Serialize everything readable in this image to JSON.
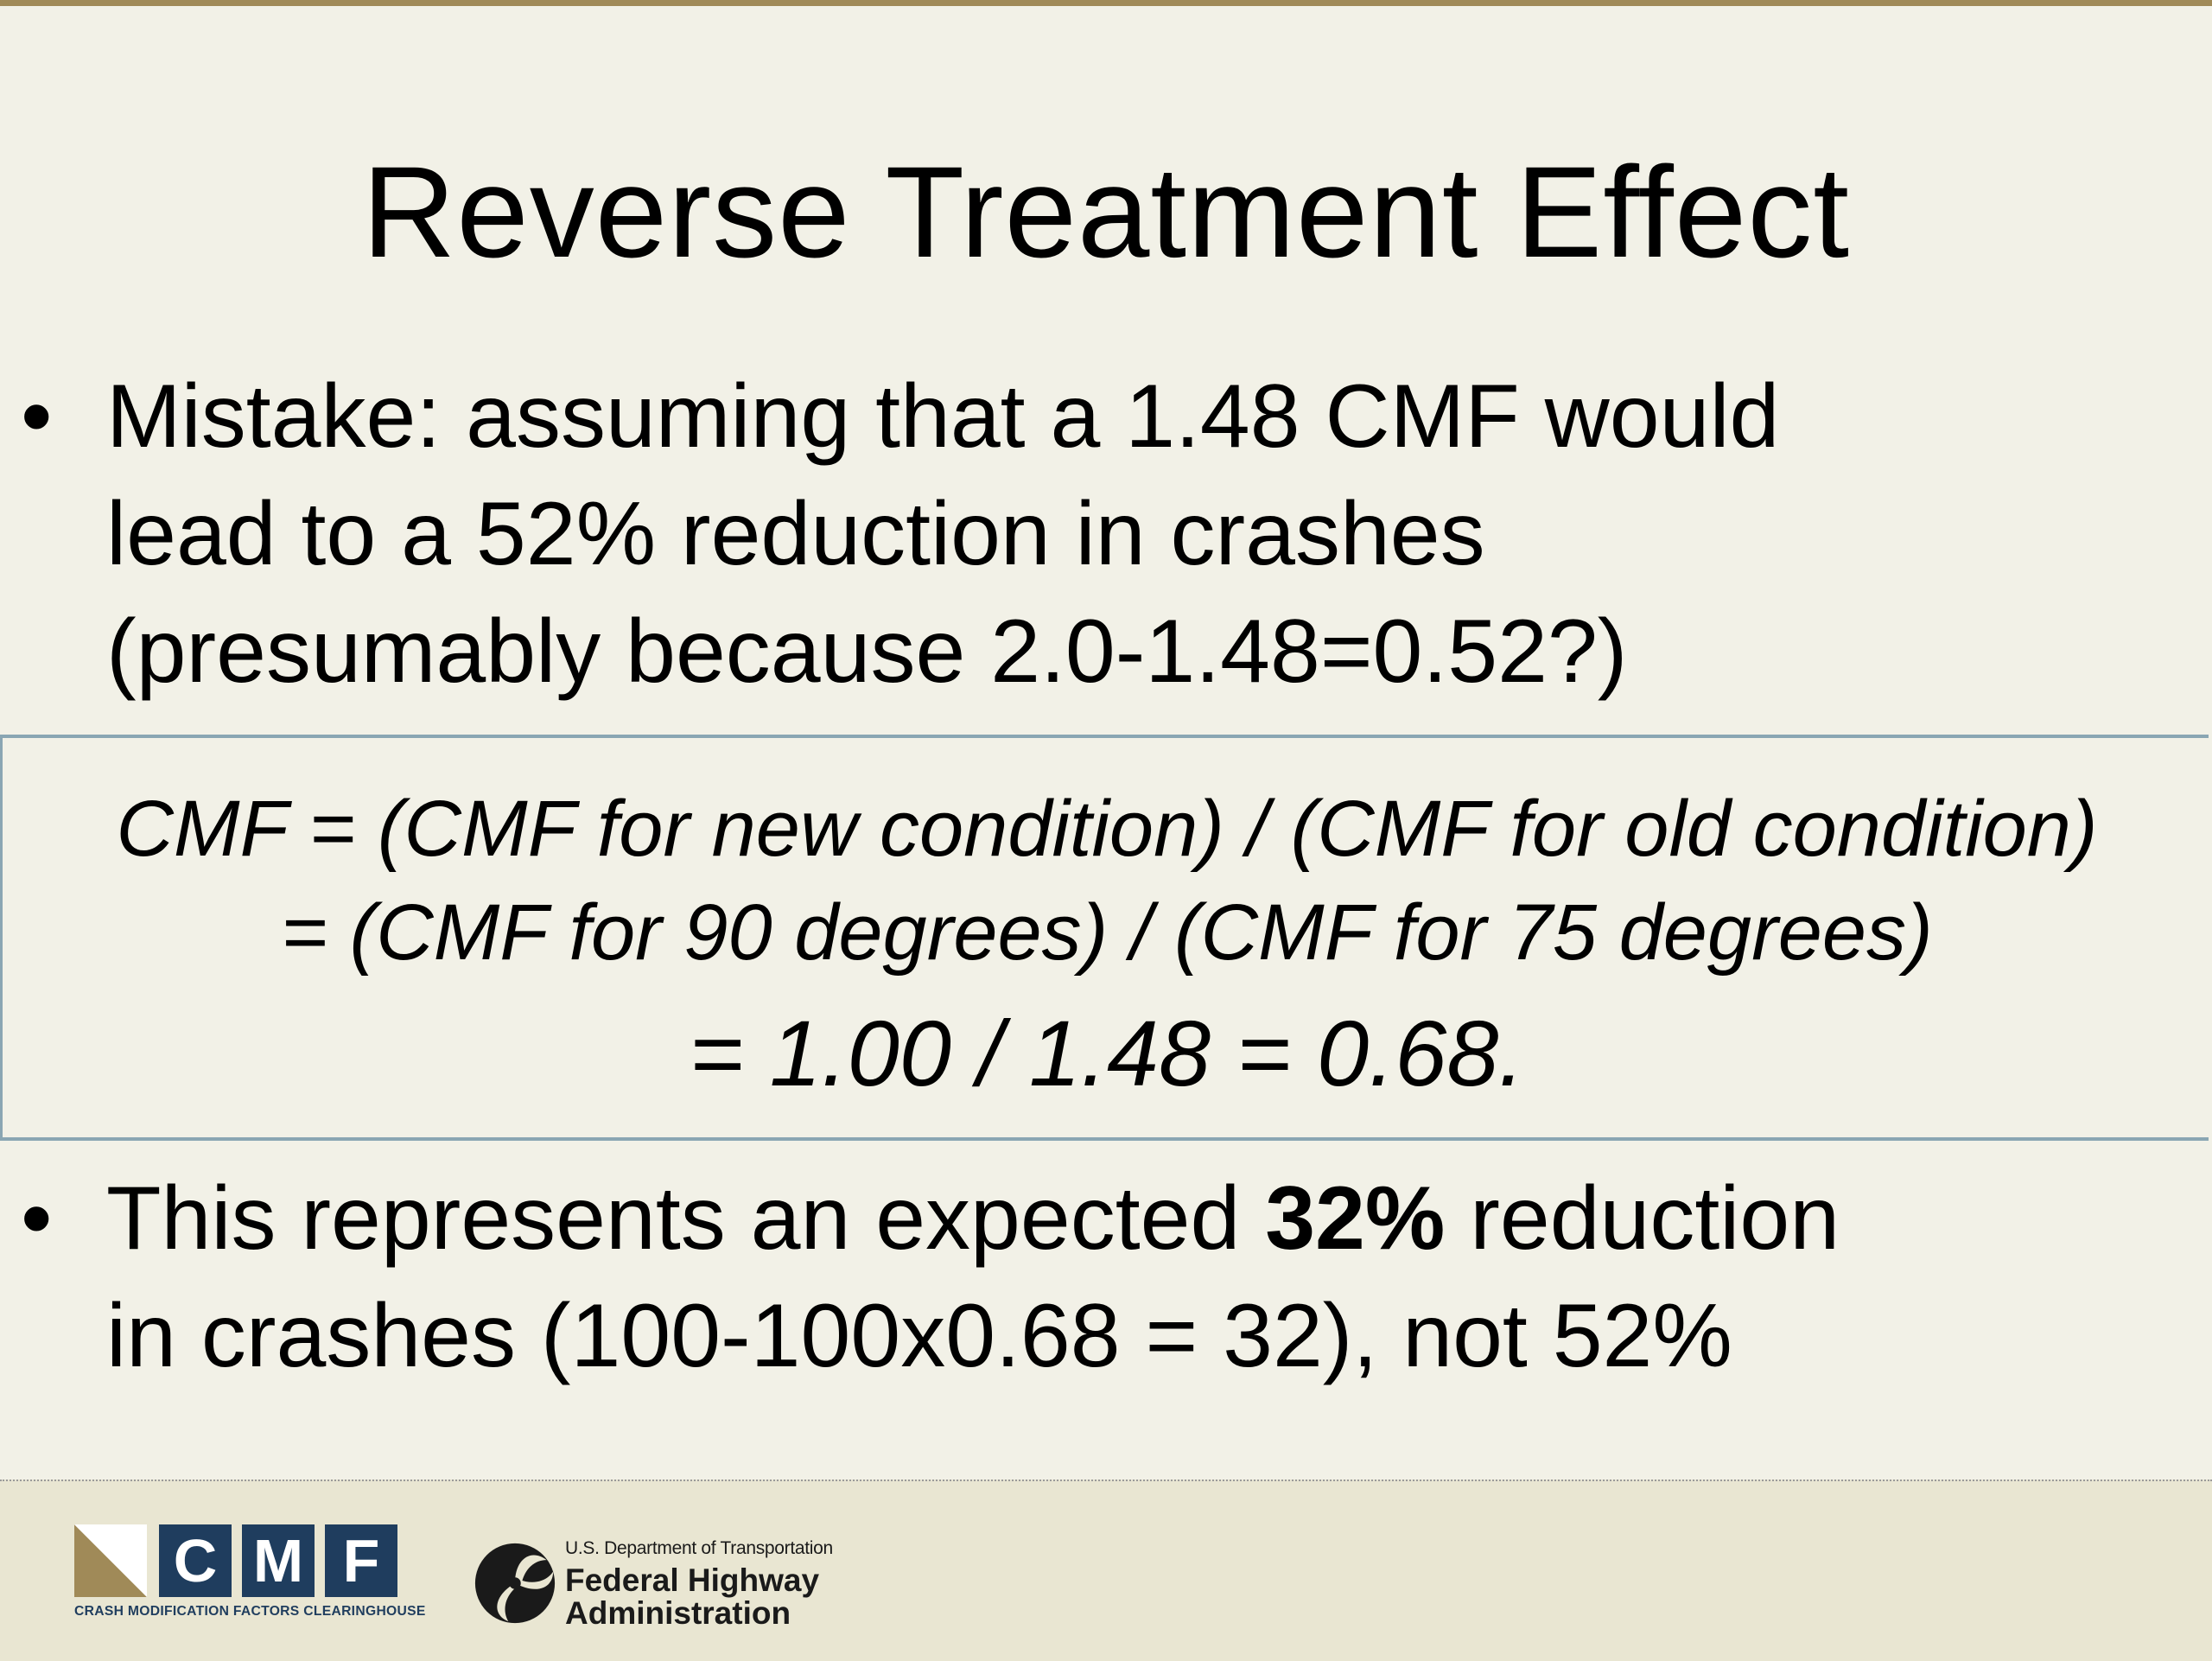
{
  "slide": {
    "title": "Reverse Treatment Effect",
    "bullet_glyph": "•",
    "bullet1": {
      "lines": [
        "Mistake: assuming that a 1.48 CMF would",
        "lead to a 52% reduction in crashes",
        "(presumably because 2.0-1.48=0.52?)"
      ]
    },
    "formula": {
      "line1": "CMF = (CMF for new condition) / (CMF for old condition)",
      "line2": "= (CMF for 90 degrees) / (CMF for 75 degrees)",
      "line3": "= 1.00 / 1.48 = 0.68."
    },
    "bullet2": {
      "line1_before": "This represents an expected ",
      "line1_bold": "32%",
      "line1_after": " reduction",
      "line2": "in crashes (100-100x0.68 = 32), not 52%"
    }
  },
  "footer": {
    "cmf_logo": {
      "letters": [
        "C",
        "M",
        "F"
      ],
      "caption": "CRASH MODIFICATION FACTORS CLEARINGHOUSE",
      "colors": {
        "navy": "#1f3d5e",
        "tan": "#a08a58"
      }
    },
    "fhwa_logo": {
      "department": "U.S. Department of Transportation",
      "name_line1": "Federal Highway",
      "name_line2": "Administration"
    }
  }
}
